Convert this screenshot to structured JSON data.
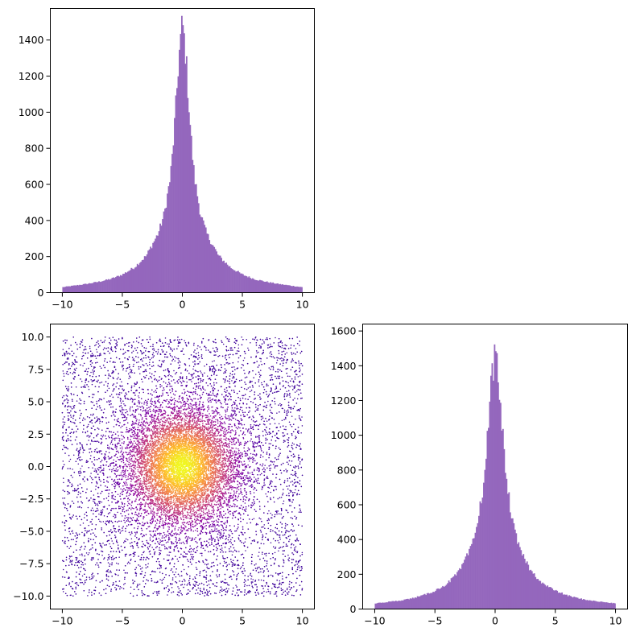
{
  "chart_data": [
    {
      "type": "bar",
      "name": "histogram-x",
      "color": "#9467bd",
      "xlim": [
        -11.0,
        11.0
      ],
      "ylim": [
        0,
        1575
      ],
      "xticks": [
        -10,
        -5,
        0,
        5,
        10
      ],
      "yticks": [
        0,
        200,
        400,
        600,
        800,
        1000,
        1200,
        1400
      ],
      "xtick_labels": [
        "−10",
        "−5",
        "0",
        "5",
        "10"
      ],
      "ytick_labels": [
        "0",
        "200",
        "400",
        "600",
        "800",
        "1000",
        "1200",
        "1400"
      ],
      "bin_range": [
        -10,
        10
      ],
      "bins": 200,
      "profile_points": [
        [
          0.0,
          1500
        ],
        [
          0.1,
          1440
        ],
        [
          0.3,
          1300
        ],
        [
          0.5,
          1080
        ],
        [
          0.8,
          790
        ],
        [
          1.0,
          640
        ],
        [
          1.5,
          440
        ],
        [
          2.0,
          330
        ],
        [
          3.0,
          205
        ],
        [
          4.0,
          140
        ],
        [
          5.0,
          100
        ],
        [
          6.0,
          75
        ],
        [
          7.0,
          60
        ],
        [
          8.0,
          48
        ],
        [
          10.0,
          30
        ]
      ]
    },
    {
      "type": "scatter",
      "name": "scatter-xy",
      "colormap": "plasma",
      "xlim": [
        -11.0,
        11.0
      ],
      "ylim": [
        -11.0,
        11.0
      ],
      "xticks": [
        -10,
        -5,
        0,
        5,
        10
      ],
      "yticks": [
        -10.0,
        -7.5,
        -5.0,
        -2.5,
        0.0,
        2.5,
        5.0,
        7.5,
        10.0
      ],
      "xtick_labels": [
        "−10",
        "−5",
        "0",
        "5",
        "10"
      ],
      "ytick_labels": [
        "−10.0",
        "−7.5",
        "−5.0",
        "−2.5",
        "0.0",
        "2.5",
        "5.0",
        "7.5",
        "10.0"
      ],
      "value_range": [
        -10,
        10
      ],
      "n_points": 22000
    },
    {
      "type": "bar",
      "name": "histogram-y",
      "color": "#9467bd",
      "xlim": [
        -11.0,
        11.0
      ],
      "ylim": [
        0,
        1640
      ],
      "xticks": [
        -10,
        -5,
        0,
        5,
        10
      ],
      "yticks": [
        0,
        200,
        400,
        600,
        800,
        1000,
        1200,
        1400,
        1600
      ],
      "xtick_labels": [
        "−10",
        "−5",
        "0",
        "5",
        "10"
      ],
      "ytick_labels": [
        "0",
        "200",
        "400",
        "600",
        "800",
        "1000",
        "1200",
        "1400",
        "1600"
      ],
      "bin_range": [
        -10,
        10
      ],
      "bins": 200,
      "profile_points": [
        [
          0.0,
          1560
        ],
        [
          0.1,
          1420
        ],
        [
          0.3,
          1330
        ],
        [
          0.5,
          1120
        ],
        [
          0.8,
          840
        ],
        [
          1.0,
          700
        ],
        [
          1.5,
          480
        ],
        [
          2.0,
          350
        ],
        [
          3.0,
          215
        ],
        [
          4.0,
          145
        ],
        [
          5.0,
          105
        ],
        [
          6.0,
          78
        ],
        [
          7.0,
          60
        ],
        [
          8.0,
          48
        ],
        [
          10.0,
          32
        ]
      ]
    }
  ]
}
